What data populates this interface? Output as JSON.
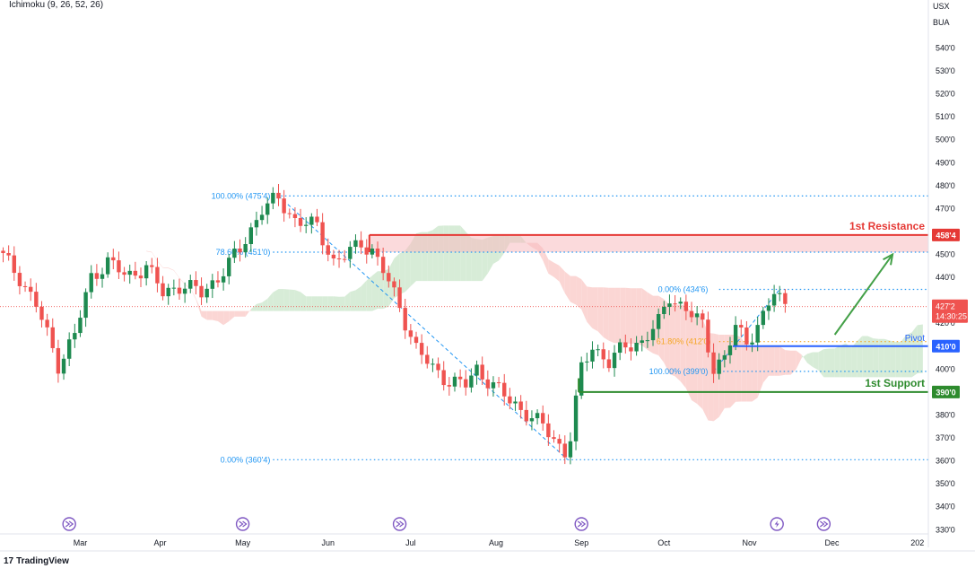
{
  "indicator": {
    "label": "Ichimoku (9, 26, 52, 26)"
  },
  "currency": {
    "line1": "USX",
    "line2": "BUA"
  },
  "footer": {
    "brand": "TradingView",
    "mark": "17"
  },
  "colors": {
    "up": "#26a69a",
    "up_dark": "#1e8a50",
    "down": "#ef5350",
    "resistance": "#e53935",
    "pivot": "#2962ff",
    "support": "#2e8b2e",
    "fib": "#2196f3",
    "fib_mid": "#f5a623",
    "arrow": "#43a047",
    "cloud_bear": "#fbd6d4",
    "cloud_bull": "#d7ecd7",
    "event": "#7e57c2",
    "price": "#ef5350"
  },
  "chart_data": {
    "type": "candlestick",
    "ylim": [
      330,
      555
    ],
    "y_ticks": [
      "540'0",
      "530'0",
      "520'0",
      "510'0",
      "500'0",
      "490'0",
      "480'0",
      "470'0",
      "460'0",
      "450'0",
      "440'0",
      "430'0",
      "420'0",
      "410'0",
      "400'0",
      "390'0",
      "380'0",
      "370'0",
      "360'0",
      "350'0",
      "340'0",
      "330'0"
    ],
    "y_tick_values": [
      540,
      530,
      520,
      510,
      500,
      490,
      480,
      470,
      460,
      450,
      440,
      430,
      420,
      410,
      400,
      390,
      380,
      370,
      360,
      350,
      340,
      330
    ],
    "x_labels": [
      {
        "label": "Mar",
        "day": 28
      },
      {
        "label": "Apr",
        "day": 57
      },
      {
        "label": "May",
        "day": 87
      },
      {
        "label": "Jun",
        "day": 118
      },
      {
        "label": "Jul",
        "day": 148
      },
      {
        "label": "Aug",
        "day": 179
      },
      {
        "label": "Sep",
        "day": 210
      },
      {
        "label": "Oct",
        "day": 240
      },
      {
        "label": "Nov",
        "day": 271
      },
      {
        "label": "Dec",
        "day": 301
      },
      {
        "label": "202",
        "day": 332
      }
    ],
    "x_range": [
      0,
      334
    ],
    "anchors": [
      {
        "d": 0,
        "p": 449
      },
      {
        "d": 6,
        "p": 440
      },
      {
        "d": 12,
        "p": 428
      },
      {
        "d": 20,
        "p": 402
      },
      {
        "d": 26,
        "p": 415
      },
      {
        "d": 32,
        "p": 440
      },
      {
        "d": 38,
        "p": 447
      },
      {
        "d": 45,
        "p": 440
      },
      {
        "d": 52,
        "p": 445
      },
      {
        "d": 58,
        "p": 433
      },
      {
        "d": 65,
        "p": 437
      },
      {
        "d": 72,
        "p": 433
      },
      {
        "d": 78,
        "p": 440
      },
      {
        "d": 86,
        "p": 452
      },
      {
        "d": 94,
        "p": 470
      },
      {
        "d": 100,
        "p": 474
      },
      {
        "d": 106,
        "p": 465
      },
      {
        "d": 114,
        "p": 462
      },
      {
        "d": 120,
        "p": 447
      },
      {
        "d": 125,
        "p": 450
      },
      {
        "d": 130,
        "p": 455
      },
      {
        "d": 134,
        "p": 452
      },
      {
        "d": 138,
        "p": 443
      },
      {
        "d": 144,
        "p": 427
      },
      {
        "d": 150,
        "p": 409
      },
      {
        "d": 156,
        "p": 400
      },
      {
        "d": 162,
        "p": 395
      },
      {
        "d": 168,
        "p": 393
      },
      {
        "d": 172,
        "p": 400
      },
      {
        "d": 178,
        "p": 393
      },
      {
        "d": 184,
        "p": 386
      },
      {
        "d": 190,
        "p": 381
      },
      {
        "d": 196,
        "p": 375
      },
      {
        "d": 201,
        "p": 368
      },
      {
        "d": 205,
        "p": 363
      },
      {
        "d": 210,
        "p": 400
      },
      {
        "d": 214,
        "p": 410
      },
      {
        "d": 220,
        "p": 403
      },
      {
        "d": 226,
        "p": 410
      },
      {
        "d": 232,
        "p": 412
      },
      {
        "d": 238,
        "p": 420
      },
      {
        "d": 242,
        "p": 432
      },
      {
        "d": 248,
        "p": 426
      },
      {
        "d": 254,
        "p": 419
      },
      {
        "d": 258,
        "p": 401
      },
      {
        "d": 262,
        "p": 405
      },
      {
        "d": 266,
        "p": 418
      },
      {
        "d": 270,
        "p": 412
      },
      {
        "d": 276,
        "p": 423
      },
      {
        "d": 280,
        "p": 433
      },
      {
        "d": 284,
        "p": 428
      }
    ],
    "levels": [
      {
        "name": "1st Resistance",
        "value": 458.5,
        "tag": "458'4",
        "label": "1st Resistance"
      },
      {
        "name": "Pivot",
        "value": 410,
        "tag": "410'0",
        "label": "Pivot"
      },
      {
        "name": "1st Support",
        "value": 390,
        "tag": "390'0",
        "label": "1st Support"
      }
    ],
    "current_price": {
      "value": 427.25,
      "tag": "427'2",
      "countdown": "14:30:25"
    },
    "fib_left": [
      {
        "label": "100.00% (475'4)",
        "value": 475.5
      },
      {
        "label": "78.60% (451'0)",
        "value": 451
      },
      {
        "label": "0.00% (360'4)",
        "value": 360.5
      }
    ],
    "fib_right": [
      {
        "label": "0.00% (434'6)",
        "value": 434.75
      },
      {
        "label": "61.80% (412'0)",
        "value": 412
      },
      {
        "label": "100.00% (399'0)",
        "value": 399
      }
    ],
    "events": [
      {
        "day": 24,
        "icon": "fast-forward"
      },
      {
        "day": 87,
        "icon": "fast-forward"
      },
      {
        "day": 144,
        "icon": "fast-forward"
      },
      {
        "day": 210,
        "icon": "fast-forward"
      },
      {
        "day": 281,
        "icon": "lightning"
      },
      {
        "day": 298,
        "icon": "fast-forward"
      }
    ]
  }
}
